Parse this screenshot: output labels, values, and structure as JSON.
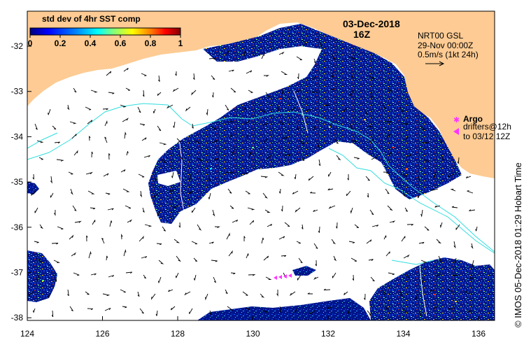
{
  "colorbar": {
    "title": "std dev of 4hr SST comp",
    "ticks": [
      "0",
      "0.2",
      "0.4",
      "0.6",
      "0.8",
      "1"
    ],
    "colors": [
      "#00007f",
      "#0000ff",
      "#007fff",
      "#00ffff",
      "#7fff7f",
      "#ffff00",
      "#ff7f00",
      "#ff0000",
      "#7f0000"
    ]
  },
  "header": {
    "date": "03-Dec-2018",
    "time": "16Z"
  },
  "current_info": {
    "line1": "NRT00 GSL",
    "line2": "29-Nov 00:00Z",
    "line3": "0.5m/s (1kt 24h)"
  },
  "legend": {
    "argo_label": "Argo",
    "drifters_label": "drifters@12h",
    "drifters_range": "to 03/12 12Z",
    "marker_color": "#ff33ff"
  },
  "footer_text": "© IMOS 05-Dec-2018 01:29 Hobart Time",
  "axes": {
    "x_ticks": [
      "124",
      "126",
      "128",
      "130",
      "132",
      "134",
      "136"
    ],
    "y_ticks": [
      "-32",
      "-33",
      "-34",
      "-35",
      "-36",
      "-37",
      "-38"
    ]
  },
  "colors": {
    "land": "#fdcb93",
    "ocean": "#ffffff",
    "sst_base": "#00148c",
    "contour": "#33dddd"
  }
}
